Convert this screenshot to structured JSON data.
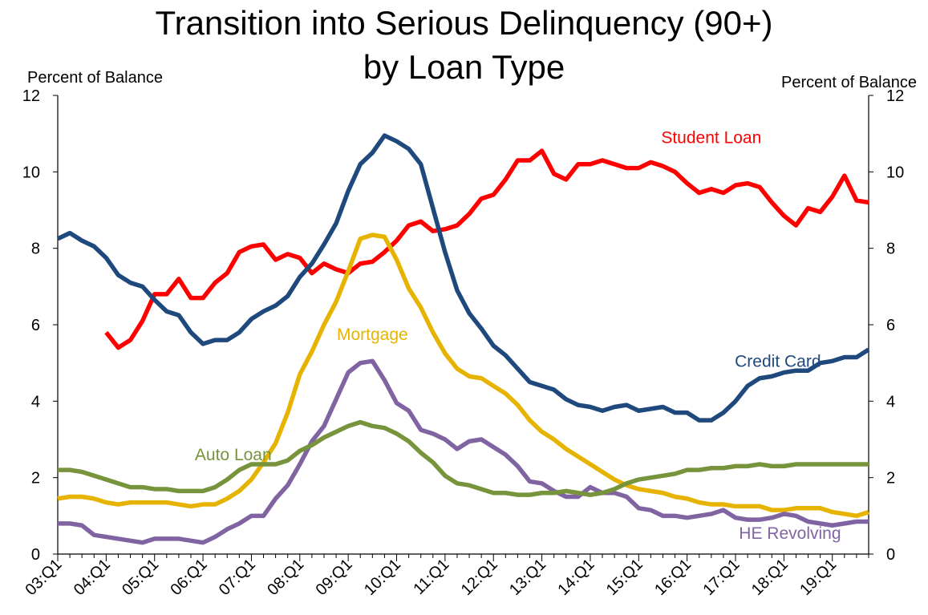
{
  "chart_data": {
    "type": "line",
    "title_line1": "Transition into Serious Delinquency (90+)",
    "title_line2": "by Loan Type",
    "ylabel_left": "Percent of Balance",
    "ylabel_right": "Percent of Balance",
    "ylim": [
      0,
      12
    ],
    "yticks": [
      "0",
      "2",
      "4",
      "6",
      "8",
      "10",
      "12"
    ],
    "x_start_index": 0,
    "x_end_index": 67,
    "xtick_labels": [
      "03:Q1",
      "04:Q1",
      "05:Q1",
      "06:Q1",
      "07:Q1",
      "08:Q1",
      "09:Q1",
      "10:Q1",
      "11:Q1",
      "12:Q1",
      "13:Q1",
      "14:Q1",
      "15:Q1",
      "16:Q1",
      "17:Q1",
      "18:Q1",
      "19:Q1"
    ],
    "series": [
      {
        "name": "Student Loan",
        "color": "#ff0000",
        "start_index": 4,
        "values": [
          5.8,
          5.4,
          5.6,
          6.1,
          6.8,
          6.8,
          7.2,
          6.7,
          6.7,
          7.1,
          7.35,
          7.9,
          8.05,
          8.1,
          7.7,
          7.85,
          7.75,
          7.35,
          7.6,
          7.45,
          7.35,
          7.6,
          7.65,
          7.9,
          8.2,
          8.6,
          8.7,
          8.45,
          8.5,
          8.6,
          8.9,
          9.3,
          9.4,
          9.8,
          10.3,
          10.3,
          10.55,
          9.95,
          9.8,
          10.2,
          10.2,
          10.3,
          10.2,
          10.1,
          10.1,
          10.25,
          10.15,
          10.0,
          9.7,
          9.45,
          9.55,
          9.45,
          9.65,
          9.7,
          9.6,
          9.2,
          8.85,
          8.6,
          9.05,
          8.95,
          9.35,
          9.9,
          9.25,
          9.2
        ]
      },
      {
        "name": "Credit Card",
        "color": "#1f497d",
        "start_index": 0,
        "values": [
          8.25,
          8.4,
          8.2,
          8.05,
          7.75,
          7.3,
          7.1,
          7.0,
          6.65,
          6.35,
          6.25,
          5.8,
          5.5,
          5.6,
          5.6,
          5.8,
          6.15,
          6.35,
          6.5,
          6.75,
          7.25,
          7.6,
          8.1,
          8.65,
          9.5,
          10.2,
          10.5,
          10.95,
          10.8,
          10.6,
          10.2,
          9.05,
          7.9,
          6.9,
          6.3,
          5.9,
          5.45,
          5.2,
          4.85,
          4.5,
          4.4,
          4.3,
          4.05,
          3.9,
          3.85,
          3.75,
          3.85,
          3.9,
          3.75,
          3.8,
          3.85,
          3.7,
          3.7,
          3.5,
          3.5,
          3.7,
          4.0,
          4.4,
          4.6,
          4.65,
          4.75,
          4.8,
          4.8,
          5.0,
          5.05,
          5.15,
          5.15,
          5.35
        ]
      },
      {
        "name": "Mortgage",
        "color": "#e6b400",
        "start_index": 0,
        "values": [
          1.45,
          1.5,
          1.5,
          1.45,
          1.35,
          1.3,
          1.35,
          1.35,
          1.35,
          1.35,
          1.3,
          1.25,
          1.3,
          1.3,
          1.45,
          1.65,
          1.95,
          2.4,
          2.9,
          3.7,
          4.7,
          5.3,
          6.0,
          6.6,
          7.4,
          8.25,
          8.35,
          8.3,
          7.7,
          6.95,
          6.45,
          5.8,
          5.25,
          4.85,
          4.65,
          4.6,
          4.4,
          4.2,
          3.9,
          3.5,
          3.2,
          3.0,
          2.75,
          2.55,
          2.35,
          2.15,
          1.95,
          1.8,
          1.7,
          1.65,
          1.6,
          1.5,
          1.45,
          1.35,
          1.3,
          1.3,
          1.25,
          1.25,
          1.25,
          1.15,
          1.15,
          1.2,
          1.2,
          1.2,
          1.1,
          1.05,
          1.0,
          1.1
        ]
      },
      {
        "name": "HE Revolving",
        "color": "#8064a2",
        "start_index": 0,
        "values": [
          0.8,
          0.8,
          0.75,
          0.5,
          0.45,
          0.4,
          0.35,
          0.3,
          0.4,
          0.4,
          0.4,
          0.35,
          0.3,
          0.45,
          0.65,
          0.8,
          1.0,
          1.0,
          1.45,
          1.8,
          2.35,
          2.95,
          3.35,
          4.05,
          4.75,
          5.0,
          5.05,
          4.55,
          3.95,
          3.75,
          3.25,
          3.15,
          3.0,
          2.75,
          2.95,
          3.0,
          2.8,
          2.6,
          2.3,
          1.9,
          1.85,
          1.65,
          1.5,
          1.5,
          1.75,
          1.6,
          1.6,
          1.5,
          1.2,
          1.15,
          1.0,
          1.0,
          0.95,
          1.0,
          1.05,
          1.15,
          0.95,
          0.9,
          0.9,
          0.95,
          1.05,
          1.0,
          0.85,
          0.8,
          0.75,
          0.8,
          0.85,
          0.85
        ]
      },
      {
        "name": "Auto Loan",
        "color": "#77933c",
        "start_index": 0,
        "values": [
          2.2,
          2.2,
          2.15,
          2.05,
          1.95,
          1.85,
          1.75,
          1.75,
          1.7,
          1.7,
          1.65,
          1.65,
          1.65,
          1.75,
          1.95,
          2.2,
          2.35,
          2.35,
          2.35,
          2.45,
          2.7,
          2.85,
          3.05,
          3.2,
          3.35,
          3.45,
          3.35,
          3.3,
          3.15,
          2.95,
          2.65,
          2.4,
          2.05,
          1.85,
          1.8,
          1.7,
          1.6,
          1.6,
          1.55,
          1.55,
          1.6,
          1.6,
          1.65,
          1.6,
          1.55,
          1.6,
          1.7,
          1.85,
          1.95,
          2.0,
          2.05,
          2.1,
          2.2,
          2.2,
          2.25,
          2.25,
          2.3,
          2.3,
          2.35,
          2.3,
          2.3,
          2.35,
          2.35,
          2.35,
          2.35,
          2.35,
          2.35,
          2.35
        ]
      }
    ],
    "annotations": [
      {
        "text": "Student Loan",
        "series": "Student Loan",
        "color": "#ff0000",
        "x": 54,
        "y": 10.75
      },
      {
        "text": "Mortgage",
        "series": "Mortgage",
        "color": "#e6b400",
        "x": 26,
        "y": 5.6
      },
      {
        "text": "Credit Card",
        "series": "Credit Card",
        "color": "#1f497d",
        "x": 59.5,
        "y": 4.9
      },
      {
        "text": "Auto Loan",
        "series": "Auto Loan",
        "color": "#77933c",
        "x": 14.5,
        "y": 2.45
      },
      {
        "text": "HE Revolving",
        "series": "HE Revolving",
        "color": "#8064a2",
        "x": 60.5,
        "y": 0.4
      }
    ]
  }
}
